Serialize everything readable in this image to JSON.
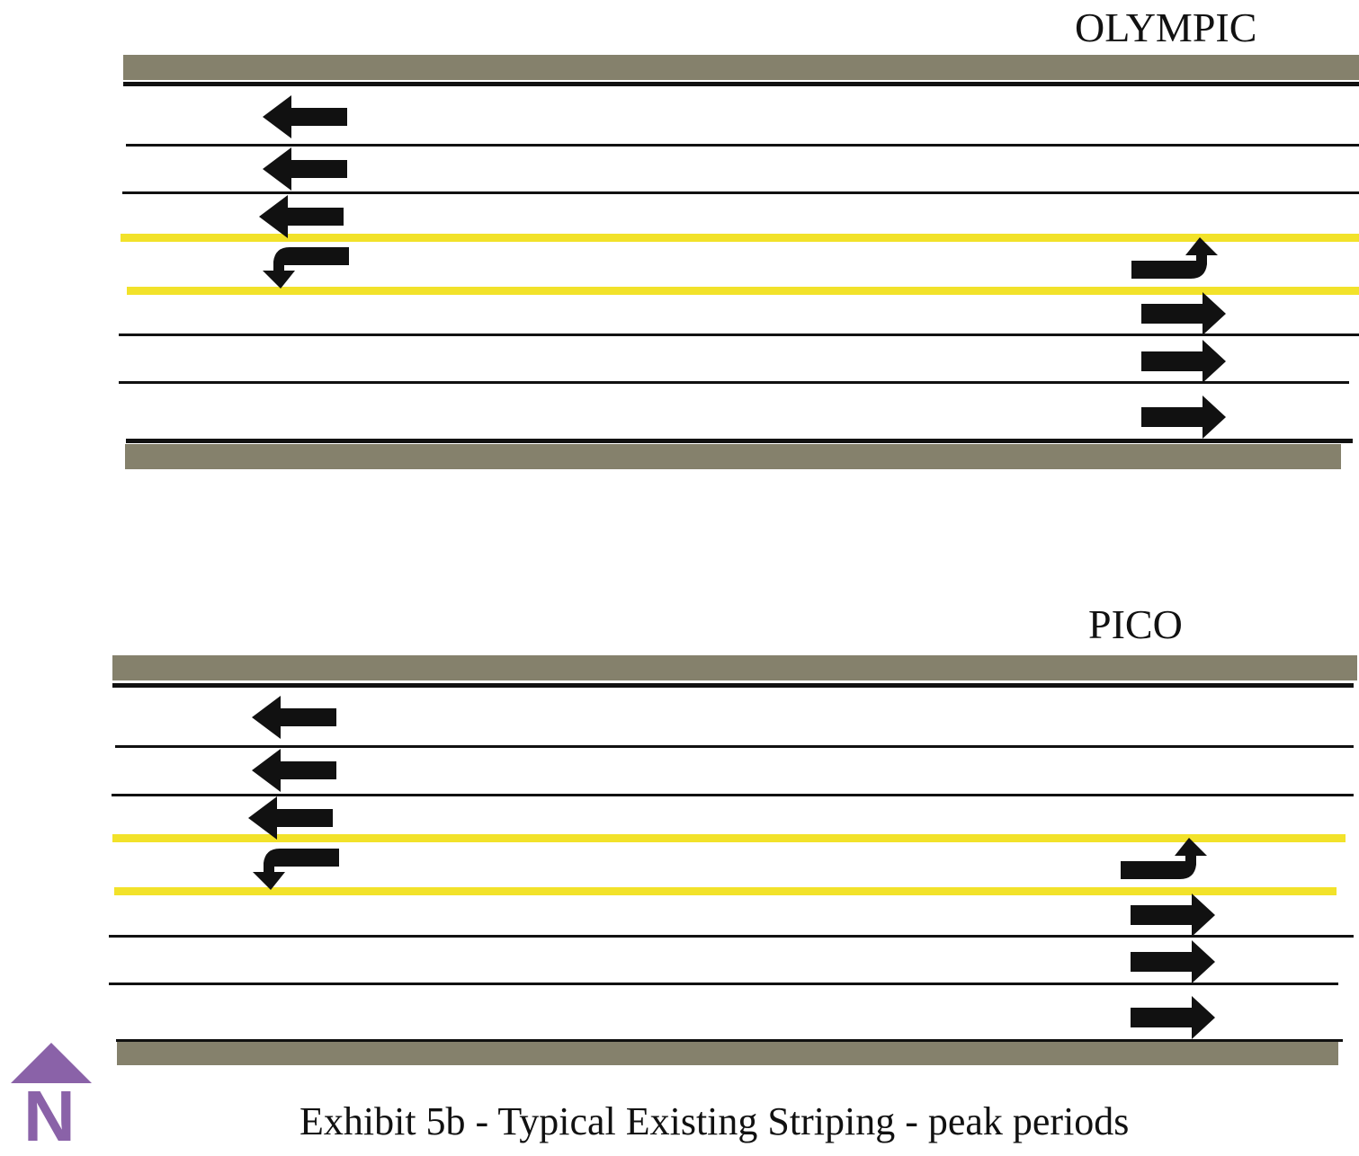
{
  "streets": [
    {
      "name": "OLYMPIC",
      "westbound": [
        "through",
        "through",
        "through",
        "left-turn"
      ],
      "eastbound": [
        "left-turn",
        "through",
        "through",
        "through"
      ]
    },
    {
      "name": "PICO",
      "westbound": [
        "through",
        "through",
        "through",
        "left-turn"
      ],
      "eastbound": [
        "left-turn",
        "through",
        "through",
        "through"
      ]
    }
  ],
  "north_arrow": {
    "letter": "N",
    "icon": "north-arrow-icon",
    "color": "#8a62a8"
  },
  "caption": "Exhibit 5b - Typical Existing Striping - peak periods",
  "colors": {
    "curb": "#85816c",
    "lane_line": "#111111",
    "median_line": "#f2e22a",
    "arrow": "#111111"
  }
}
